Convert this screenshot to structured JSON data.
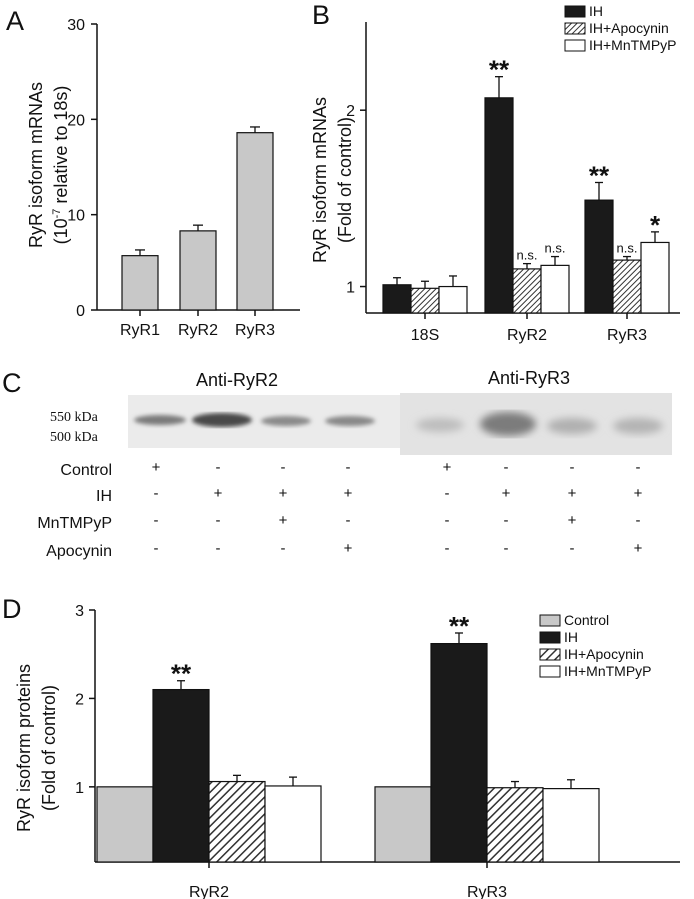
{
  "panel_letters": {
    "a": "A",
    "b": "B",
    "c": "C",
    "d": "D"
  },
  "colors": {
    "ih": "#1a1a1a",
    "control": "#c8c8c8",
    "white": "#ffffff",
    "hatch": "#444444"
  },
  "blot": {
    "title_left": "Anti-RyR2",
    "title_right": "Anti-RyR3",
    "mw_labels": [
      "550 kDa",
      "500 kDa"
    ],
    "conditions": [
      {
        "name": "Control",
        "signs": [
          "+",
          "-",
          "-",
          "-",
          "+",
          "-",
          "-",
          "-"
        ]
      },
      {
        "name": "IH",
        "signs": [
          "-",
          "+",
          "+",
          "+",
          "-",
          "+",
          "+",
          "+"
        ]
      },
      {
        "name": "MnTMPyP",
        "signs": [
          "-",
          "-",
          "+",
          "-",
          "-",
          "-",
          "+",
          "-"
        ]
      },
      {
        "name": "Apocynin",
        "signs": [
          "-",
          "-",
          "-",
          "+",
          "-",
          "-",
          "-",
          "+"
        ]
      }
    ]
  },
  "chart_data": [
    {
      "panel": "A",
      "type": "bar",
      "categories": [
        "RyR1",
        "RyR2",
        "RyR3"
      ],
      "values": [
        5.7,
        8.3,
        18.6
      ],
      "errors": [
        0.6,
        0.6,
        0.6
      ],
      "ylabel_line1": "RyR isoform mRNAs",
      "ylabel_line2_pre": "(10",
      "ylabel_line2_sup": "-7",
      "ylabel_line2_post": " relative to 18s)",
      "ylim": [
        0,
        30
      ],
      "yticks": [
        0,
        10,
        20,
        30
      ],
      "bar_color": "#c8c8c8"
    },
    {
      "panel": "B",
      "type": "bar",
      "categories": [
        "18S",
        "RyR2",
        "RyR3"
      ],
      "series": [
        {
          "name": "IH",
          "values": [
            1.01,
            2.07,
            1.49
          ],
          "errors": [
            0.04,
            0.12,
            0.1
          ],
          "annotations": [
            "",
            "**",
            "**"
          ]
        },
        {
          "name": "IH+Apocynin",
          "values": [
            0.99,
            1.1,
            1.15
          ],
          "errors": [
            0.04,
            0.03,
            0.02
          ],
          "annotations": [
            "",
            "n.s.",
            "n.s."
          ]
        },
        {
          "name": "IH+MnTMPyP",
          "values": [
            1.0,
            1.12,
            1.25
          ],
          "errors": [
            0.06,
            0.05,
            0.06
          ],
          "annotations": [
            "",
            "n.s.",
            "*"
          ]
        }
      ],
      "ylabel_line1": "RyR isoform mRNAs",
      "ylabel_line2": "(Fold of control)",
      "ylim": [
        0.85,
        2.5
      ],
      "yticks": [
        1,
        2
      ],
      "legend_position": "top-right"
    },
    {
      "panel": "D",
      "type": "bar",
      "categories": [
        "RyR2",
        "RyR3"
      ],
      "series": [
        {
          "name": "Control",
          "values": [
            1.0,
            1.0
          ],
          "errors": [
            0,
            0
          ],
          "annotations": [
            "",
            ""
          ]
        },
        {
          "name": "IH",
          "values": [
            2.1,
            2.62
          ],
          "errors": [
            0.1,
            0.12
          ],
          "annotations": [
            "**",
            "**"
          ]
        },
        {
          "name": "IH+Apocynin",
          "values": [
            1.06,
            0.99
          ],
          "errors": [
            0.07,
            0.07
          ],
          "annotations": [
            "",
            ""
          ]
        },
        {
          "name": "IH+MnTMPyP",
          "values": [
            1.01,
            0.98
          ],
          "errors": [
            0.1,
            0.1
          ],
          "annotations": [
            "",
            ""
          ]
        }
      ],
      "ylabel_line1": "RyR isoform proteins",
      "ylabel_line2": "(Fold of control)",
      "ylim": [
        0.15,
        3
      ],
      "yticks": [
        1,
        2,
        3
      ],
      "legend_position": "top-right"
    }
  ]
}
